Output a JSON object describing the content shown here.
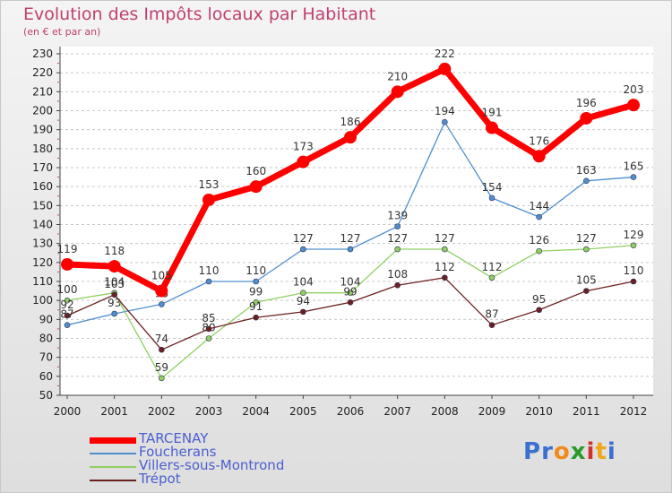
{
  "title": "Evolution des Impôts locaux par Habitant",
  "subtitle": "(en € et par an)",
  "logo": {
    "letters": [
      "P",
      "r",
      "o",
      "x",
      "i",
      "t",
      "i"
    ],
    "colors": [
      "#3b6fd0",
      "#3b6fd0",
      "#f08a1a",
      "#2a9a2a",
      "#d43030",
      "#f0a81a",
      "#3b6fd0"
    ]
  },
  "chart_data": {
    "type": "line",
    "title": "Evolution des Impôts locaux par Habitant",
    "subtitle": "(en € et par an)",
    "x": [
      "2000",
      "2001",
      "2002",
      "2003",
      "2004",
      "2005",
      "2006",
      "2007",
      "2008",
      "2009",
      "2010",
      "2011",
      "2012"
    ],
    "yticks": [
      "50",
      "60",
      "70",
      "80",
      "90",
      "100",
      "110",
      "120",
      "130",
      "140",
      "150",
      "160",
      "170",
      "180",
      "190",
      "200",
      "210",
      "220",
      "230"
    ],
    "ylim": [
      50,
      230
    ],
    "grid": "horizontal dashed",
    "legend_position": "bottom-left",
    "series": [
      {
        "name": "TARCENAY",
        "color": "#ff0000",
        "values": [
          119,
          118,
          105,
          153,
          160,
          173,
          186,
          210,
          222,
          191,
          176,
          196,
          203
        ],
        "labels": [
          "119",
          "118",
          "105",
          "153",
          "160",
          "173",
          "186",
          "210",
          "222",
          "191",
          "176",
          "196",
          "203"
        ]
      },
      {
        "name": "Foucherans",
        "color": "#4f8fcf",
        "values": [
          87,
          93,
          98,
          110,
          110,
          127,
          127,
          139,
          194,
          154,
          144,
          163,
          165
        ],
        "labels": [
          "87",
          "93",
          "98",
          "110",
          "110",
          "127",
          "127",
          "139",
          "194",
          "154",
          "144",
          "163",
          "165"
        ]
      },
      {
        "name": "Villers-sous-Montrond",
        "color": "#8fd060",
        "values": [
          100,
          104,
          59,
          80,
          99,
          104,
          104,
          127,
          127,
          112,
          126,
          127,
          129
        ],
        "labels": [
          "100",
          "104",
          "59",
          "80",
          "99",
          "104",
          "104",
          "127",
          "127",
          "112",
          "126",
          "127",
          "129"
        ]
      },
      {
        "name": "Trépot",
        "color": "#6b2020",
        "values": [
          92,
          103,
          74,
          85,
          91,
          94,
          99,
          108,
          112,
          87,
          95,
          105,
          110
        ],
        "labels": [
          "92",
          "103",
          "74",
          "85",
          "91",
          "94",
          "99",
          "108",
          "112",
          "87",
          "95",
          "105",
          "110"
        ]
      }
    ]
  }
}
